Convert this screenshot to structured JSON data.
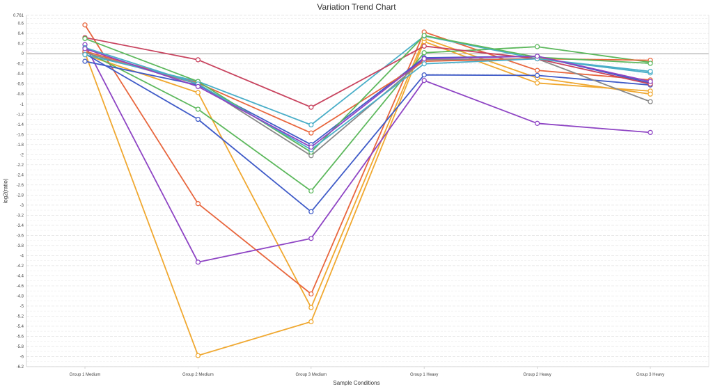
{
  "chart_data": {
    "type": "line",
    "title": "Variation Trend Chart",
    "xlabel": "Sample Conditions",
    "ylabel": "log2(ratio)",
    "ylim": [
      -6.2,
      0.761
    ],
    "y_ticks": [
      "0.761",
      "0.6",
      "0.4",
      "0.2",
      "0",
      "-0.2",
      "-0.4",
      "-0.6",
      "-0.8",
      "-1",
      "-1.2",
      "-1.4",
      "-1.6",
      "-1.8",
      "-2",
      "-2.2",
      "-2.4",
      "-2.6",
      "-2.8",
      "-3",
      "-3.2",
      "-3.4",
      "-3.6",
      "-3.8",
      "-4",
      "-4.2",
      "-4.4",
      "-4.6",
      "-4.8",
      "-5",
      "-5.2",
      "-5.4",
      "-5.6",
      "-5.8",
      "-6",
      "-6.2"
    ],
    "categories": [
      "Group 1 Medium",
      "Group 2 Medium",
      "Group 3 Medium",
      "Group 1 Heavy",
      "Group 2 Heavy",
      "Group 3 Heavy"
    ],
    "grid": true,
    "zero_line": true,
    "series": [
      {
        "color": "#f0a830",
        "values": [
          0.02,
          -5.98,
          -5.31,
          0.24,
          -0.58,
          -0.74
        ]
      },
      {
        "color": "#f0a830",
        "values": [
          -0.02,
          -0.77,
          -5.03,
          0.3,
          -0.48,
          -0.8
        ]
      },
      {
        "color": "#e8663d",
        "values": [
          0.57,
          -2.97,
          -4.76,
          0.43,
          -0.33,
          -0.52
        ]
      },
      {
        "color": "#8e44c4",
        "values": [
          0.18,
          -4.13,
          -3.66,
          -0.53,
          -1.38,
          -1.56
        ]
      },
      {
        "color": "#3f5bc8",
        "values": [
          0.0,
          -1.3,
          -3.13,
          -0.42,
          -0.43,
          -0.62
        ]
      },
      {
        "color": "#5cb85c",
        "values": [
          0.05,
          -1.1,
          -2.72,
          0.02,
          0.14,
          -0.17
        ]
      },
      {
        "color": "#888888",
        "values": [
          0.02,
          -0.6,
          -2.02,
          -0.12,
          -0.1,
          -0.95
        ]
      },
      {
        "color": "#3f5bc8",
        "values": [
          -0.15,
          -0.62,
          -1.8,
          -0.08,
          -0.05,
          -0.58
        ]
      },
      {
        "color": "#e8663d",
        "values": [
          0.05,
          -0.58,
          -1.57,
          -0.15,
          -0.1,
          -0.13
        ]
      },
      {
        "color": "#49aec8",
        "values": [
          -0.02,
          -0.55,
          -1.41,
          0.35,
          -0.1,
          -0.38
        ]
      },
      {
        "color": "#c8435e",
        "values": [
          0.32,
          -0.12,
          -1.06,
          0.15,
          -0.1,
          -0.6
        ]
      },
      {
        "color": "#5cb85c",
        "values": [
          0.3,
          -0.55,
          -1.95,
          0.36,
          -0.07,
          -0.19
        ]
      },
      {
        "color": "#49aec8",
        "values": [
          0.12,
          -0.6,
          -1.9,
          -0.2,
          -0.1,
          -0.35
        ]
      },
      {
        "color": "#8e44c4",
        "values": [
          0.1,
          -0.65,
          -1.85,
          -0.1,
          -0.05,
          -0.55
        ]
      }
    ]
  }
}
